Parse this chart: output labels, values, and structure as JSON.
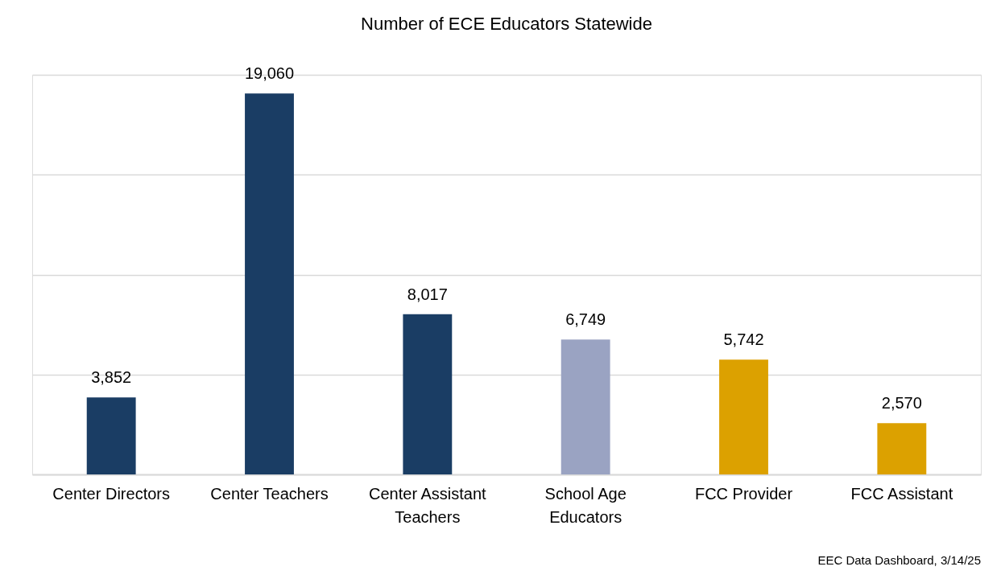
{
  "chart_data": {
    "type": "bar",
    "title": "Number of ECE Educators Statewide",
    "categories": [
      "Center Directors",
      "Center Teachers",
      "Center Assistant\nTeachers",
      "School Age\nEducators",
      "FCC Provider",
      "FCC Assistant"
    ],
    "values": [
      3852,
      19060,
      8017,
      6749,
      5742,
      2570
    ],
    "colors": [
      "#1a3d64",
      "#1a3d64",
      "#1a3d64",
      "#9aa3c2",
      "#dca100",
      "#dca100"
    ],
    "value_labels": [
      "3,852",
      "19,060",
      "8,017",
      "6,749",
      "5,742",
      "2,570"
    ],
    "grid": "y",
    "tick_labels": "x",
    "annotations": [
      "EEC Data Dashboard, 3/14/25"
    ]
  }
}
